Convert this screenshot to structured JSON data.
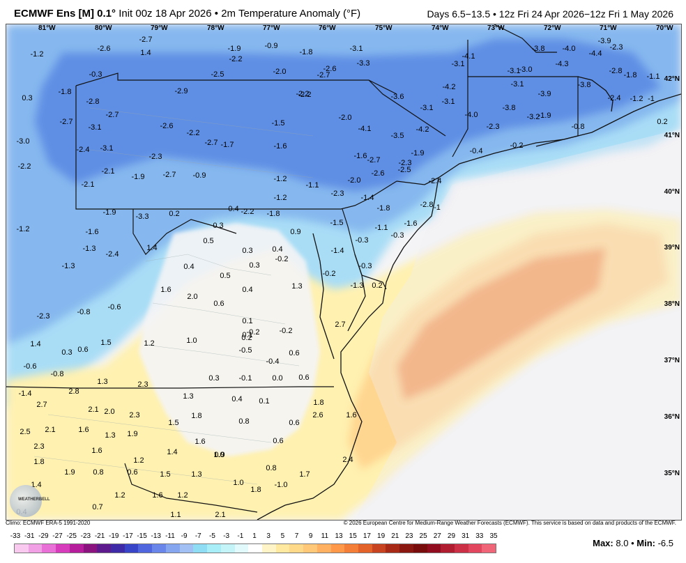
{
  "header": {
    "model": "ECMWF Ens [M]",
    "resolution": "0.1°",
    "init": "Init 00z 18 Apr 2026",
    "field": "• 2m Temperature Anomaly (°F)",
    "valid": "Days 6.5−13.5 • 12z Fri 24 Apr 2026−12z Fri 1 May 2026"
  },
  "map": {
    "lon_labels": [
      "81°W",
      "80°W",
      "79°W",
      "78°W",
      "77°W",
      "76°W",
      "75°W",
      "74°W",
      "73°W",
      "72°W",
      "71°W",
      "70°W"
    ],
    "lat_labels": [
      "42°N",
      "41°N",
      "40°N",
      "39°N",
      "38°N",
      "37°N",
      "36°N",
      "35°N"
    ],
    "values": [
      "-1.2",
      "-2.6",
      "-2.7",
      "1.4",
      "-1.9",
      "-2.2",
      "-0.9",
      "-1.8",
      "-3.1",
      "-2.2",
      "-4.2",
      "-3.8",
      "-4.0",
      "-3.9",
      "-2.3",
      "0.3",
      "-1.8",
      "-0.3",
      "-2.5",
      "-2.0",
      "-2.7",
      "-2.6",
      "-3.3",
      "-4.1",
      "-3.1",
      "-3.1",
      "-3.0",
      "-4.3",
      "-4.4",
      "-2.8",
      "-1.8",
      "-1.1",
      "-2.8",
      "-2.9",
      "-2.2",
      "-3.6",
      "-3.1",
      "-3.1",
      "-3.1",
      "-3.9",
      "-3.8",
      "-2.4",
      "-1.2",
      "-1",
      "-2.7",
      "-2.7",
      "-3.1",
      "-2.6",
      "-2.2",
      "-1.5",
      "-2.0",
      "-4.1",
      "-4.2",
      "-3.5",
      "-4.0",
      "-3.8",
      "-2.3",
      "-3.2",
      "-1.9",
      "-0.8",
      "0.2",
      "-3.0",
      "-2.4",
      "-3.1",
      "-2.7",
      "-1.7",
      "-1.6",
      "-1.6",
      "-1.9",
      "-0.4",
      "-0.2",
      "-2.2",
      "-2.1",
      "-2.3",
      "-2.7",
      "-0.9",
      "-1.2",
      "-1.1",
      "-2.7",
      "-2.6",
      "-2.5",
      "-2.3",
      "-2.1",
      "-1.9",
      "-1.2",
      "-2.3",
      "-2.0",
      "-1.4",
      "-1.8",
      "-2.4",
      "-2.8",
      "-1",
      "-1.9",
      "-3.3",
      "0.2",
      "0.4",
      "-2.2",
      "-1.8",
      "-1.6",
      "-1.5",
      "-1.2",
      "-1.6",
      "0.3",
      "0.9",
      "-1.1",
      "-0.3",
      "-0.3",
      "-1.3",
      "-2.4",
      "1.4",
      "0.5",
      "0.3",
      "0.4",
      "-1.4",
      "-1.3",
      "0.4",
      "0.3",
      "-0.2",
      "-0.3",
      "0.5",
      "-0.2",
      "-1.3",
      "0.2",
      "1.6",
      "0.4",
      "1.3",
      "-0.8",
      "-0.6",
      "2.0",
      "0.6",
      "-2.3",
      "0.1",
      "-0.2",
      "2.7",
      "1.4",
      "0.6",
      "1.5",
      "1.2",
      "1.0",
      "0.1",
      "-0.2",
      "0.2",
      "-0.6",
      "0.3",
      "-0.5",
      "-0.4",
      "0.6",
      "-0.8",
      "1.3",
      "2.3",
      "0.3",
      "-0.1",
      "0.0",
      "0.6",
      "-1.4",
      "2.8",
      "1.3",
      "0.4",
      "0.1",
      "1.8",
      "2.7",
      "2.1",
      "2.0",
      "2.3",
      "1.8",
      "1.6",
      "1.5",
      "0.8",
      "0.6",
      "2.6",
      "2.5",
      "2.1",
      "1.6",
      "1.3",
      "1.9",
      "1.6",
      "0.9",
      "0.6",
      "2.3",
      "1.6",
      "1.0",
      "1.8",
      "1.2",
      "1.4",
      "2.4",
      "1.9",
      "0.8",
      "0.6",
      "1.5",
      "1.3",
      "0.8",
      "1.7",
      "1.4",
      "1.0",
      "-1.0",
      "1.2",
      "1.6",
      "1.2",
      "1.8",
      "0.4",
      "0.7",
      "1.1",
      "2.1"
    ]
  },
  "footer": {
    "climo": "Climo: ECMWF ERA-5 1991-2020",
    "copyright": "© 2026 European Centre for Medium-Range Weather Forecasts (ECMWF). This service is based on data and products of the ECMWF.",
    "logo_name": "WEATHERBELL",
    "logo_sub": "Analytics LLC"
  },
  "scale": {
    "ticks": [
      "-33",
      "-31",
      "-29",
      "-27",
      "-25",
      "-23",
      "-21",
      "-19",
      "-17",
      "-15",
      "-13",
      "-11",
      "-9",
      "-7",
      "-5",
      "-3",
      "-1",
      "1",
      "3",
      "5",
      "7",
      "9",
      "11",
      "13",
      "15",
      "17",
      "19",
      "21",
      "23",
      "25",
      "27",
      "29",
      "31",
      "33",
      "35"
    ],
    "colors": [
      "#f9c9f0",
      "#f2a0e6",
      "#e870d6",
      "#d63cbc",
      "#b51d9c",
      "#8a1380",
      "#5c1a8c",
      "#3e2aa6",
      "#3945c9",
      "#4f66de",
      "#6a86ea",
      "#86a6f0",
      "#a2c0f4",
      "#8fdcf5",
      "#a8eef8",
      "#c4f4f8",
      "#e2fafb",
      "#ffffff",
      "#fff4c8",
      "#ffe9a0",
      "#ffd98a",
      "#ffc878",
      "#ffb060",
      "#ff9848",
      "#f47d38",
      "#e2622a",
      "#c84420",
      "#a82a16",
      "#8a1810",
      "#780c0c",
      "#900c1e",
      "#b01c30",
      "#cc3046",
      "#e2465e",
      "#f06678"
    ]
  },
  "stats": {
    "max_label": "Max:",
    "max": "8.0",
    "sep": "•",
    "min_label": "Min:",
    "min": "-6.5"
  },
  "colors": {
    "cold_light": "#a9ddf6",
    "cold_mid": "#86b8ef",
    "cold_dark": "#5f8fe4",
    "neutral": "#f4f4f6",
    "warm_light": "#fff1b0",
    "warm_mid": "#ffd690",
    "warm_dark": "#f49a55"
  }
}
